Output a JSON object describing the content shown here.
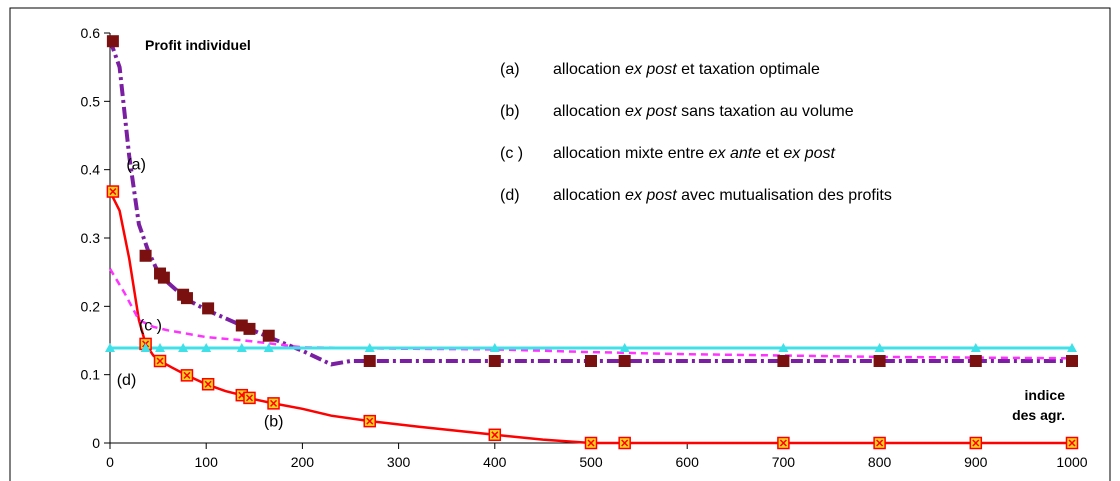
{
  "chart_data": {
    "type": "line",
    "title": "Profit individuel",
    "xlabel": "indice des agr.",
    "xlabel_lines": [
      "indice",
      "des agr."
    ],
    "ylabel": "",
    "xlim": [
      0,
      1000
    ],
    "ylim": [
      0,
      0.6
    ],
    "x_ticks": [
      "0",
      "100",
      "200",
      "300",
      "400",
      "500",
      "600",
      "700",
      "800",
      "900",
      "1000"
    ],
    "y_ticks": [
      "0",
      "0.1",
      "0.2",
      "0.3",
      "0.4",
      "0.5",
      "0.6"
    ],
    "legend": [
      {
        "tag": "(a)",
        "parts": [
          {
            "t": "allocation ",
            "i": false
          },
          {
            "t": "ex post",
            "i": true
          },
          {
            "t": " et taxation optimale",
            "i": false
          }
        ]
      },
      {
        "tag": "(b)",
        "parts": [
          {
            "t": "allocation ",
            "i": false
          },
          {
            "t": "ex post",
            "i": true
          },
          {
            "t": " sans taxation au volume",
            "i": false
          }
        ]
      },
      {
        "tag": "(c )",
        "parts": [
          {
            "t": "allocation mixte entre ",
            "i": false
          },
          {
            "t": "ex ante",
            "i": true
          },
          {
            "t": " et ",
            "i": false
          },
          {
            "t": "ex post",
            "i": true
          }
        ]
      },
      {
        "tag": "(d)",
        "parts": [
          {
            "t": "allocation ",
            "i": false
          },
          {
            "t": "ex post",
            "i": true
          },
          {
            "t": " avec mutualisation des profits",
            "i": false
          }
        ]
      }
    ],
    "annotations": [
      {
        "text": "(a)",
        "x": 17,
        "y": 0.4
      },
      {
        "text": "(c )",
        "x": 30,
        "y": 0.165
      },
      {
        "text": "(d)",
        "x": 7,
        "y": 0.085
      },
      {
        "text": "(b)",
        "x": 160,
        "y": 0.024
      }
    ],
    "series": [
      {
        "name": "(a)",
        "color": "#7b1fa2",
        "dash": "12,4,3,4",
        "marker": null,
        "x": [
          0,
          10,
          20,
          30,
          40,
          50,
          60,
          80,
          100,
          140,
          165,
          200,
          230,
          250,
          270,
          300,
          400,
          500,
          600,
          700,
          800,
          900,
          1000
        ],
        "y": [
          0.59,
          0.55,
          0.42,
          0.32,
          0.28,
          0.25,
          0.235,
          0.21,
          0.195,
          0.17,
          0.155,
          0.135,
          0.115,
          0.12,
          0.12,
          0.12,
          0.12,
          0.12,
          0.12,
          0.12,
          0.12,
          0.12,
          0.12
        ]
      },
      {
        "name": "(a) markers",
        "color": "#7b1010",
        "marker": "square",
        "x": [
          3,
          37,
          52,
          56,
          76,
          80,
          102,
          137,
          145,
          165,
          270,
          400,
          500,
          535,
          700,
          800,
          900,
          1000
        ],
        "y": [
          0.588,
          0.274,
          0.248,
          0.242,
          0.217,
          0.212,
          0.197,
          0.172,
          0.167,
          0.157,
          0.12,
          0.12,
          0.12,
          0.12,
          0.12,
          0.12,
          0.12,
          0.12
        ]
      },
      {
        "name": "(b)",
        "color": "#ff0000",
        "dash": null,
        "marker": "square-x",
        "x": [
          3,
          37,
          52,
          80,
          102,
          137,
          145,
          170,
          270,
          400,
          500,
          535,
          700,
          800,
          900,
          1000
        ],
        "y": [
          0.368,
          0.145,
          0.12,
          0.099,
          0.086,
          0.07,
          0.066,
          0.058,
          0.032,
          0.012,
          0.0,
          0.0,
          0.0,
          0.0,
          0.0,
          0.0
        ],
        "line_x": [
          0,
          10,
          20,
          30,
          37,
          45,
          52,
          65,
          80,
          100,
          120,
          137,
          150,
          170,
          200,
          230,
          270,
          320,
          400,
          450,
          500,
          550,
          600,
          700,
          800,
          900,
          1000
        ],
        "line_y": [
          0.368,
          0.34,
          0.27,
          0.18,
          0.145,
          0.128,
          0.12,
          0.11,
          0.099,
          0.086,
          0.076,
          0.07,
          0.064,
          0.058,
          0.05,
          0.04,
          0.032,
          0.024,
          0.012,
          0.005,
          0.0,
          0.0,
          0.0,
          0.0,
          0.0,
          0.0,
          0.0
        ]
      },
      {
        "name": "(c )",
        "color": "#ff33ff",
        "dash": "7,5",
        "marker": null,
        "x": [
          0,
          15,
          30,
          45,
          60,
          80,
          100,
          140,
          170,
          200,
          300,
          400,
          500,
          600,
          700,
          800,
          900,
          1000
        ],
        "y": [
          0.255,
          0.22,
          0.18,
          0.17,
          0.165,
          0.16,
          0.155,
          0.15,
          0.145,
          0.14,
          0.138,
          0.137,
          0.133,
          0.13,
          0.128,
          0.126,
          0.125,
          0.124
        ]
      },
      {
        "name": "(d)",
        "color": "#40e0e8",
        "dash": null,
        "marker": "triangle",
        "x": [
          0,
          37,
          52,
          76,
          100,
          137,
          165,
          270,
          400,
          535,
          700,
          800,
          900,
          1000
        ],
        "y": [
          0.139,
          0.139,
          0.139,
          0.139,
          0.139,
          0.139,
          0.139,
          0.139,
          0.139,
          0.139,
          0.139,
          0.139,
          0.139,
          0.139
        ]
      }
    ]
  }
}
